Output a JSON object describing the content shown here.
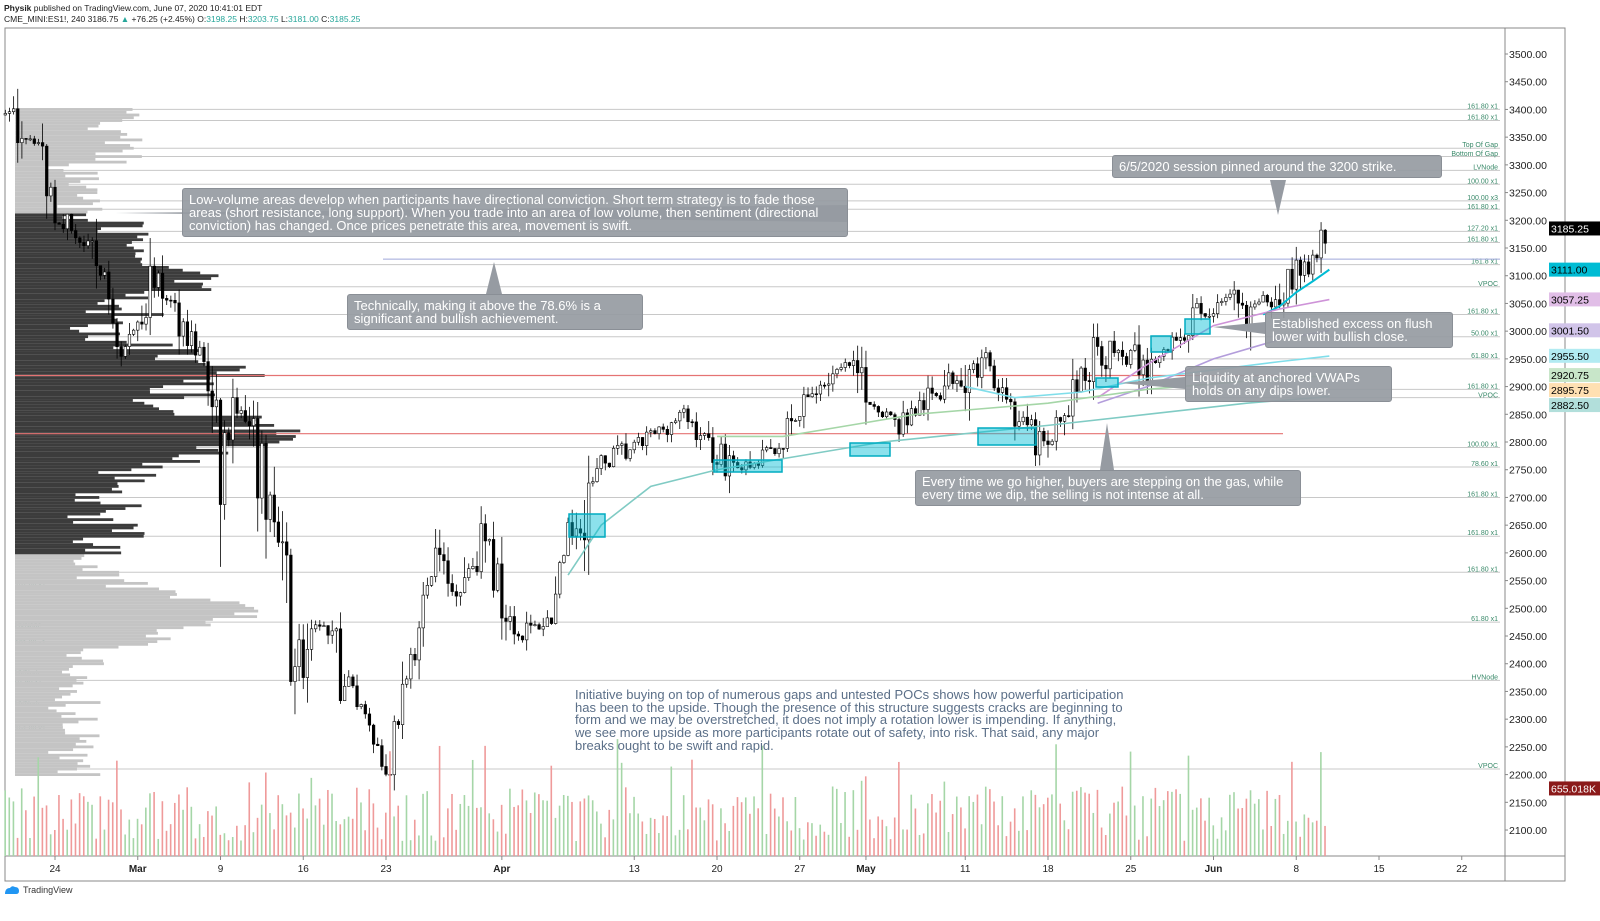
{
  "header": {
    "author": "Physik",
    "published": "published on TradingView.com, June 07, 2020 10:41:01 EDT",
    "symbol": "CME_MINI:ES1!, 240",
    "last": "3186.75",
    "change": "+76.25 (+2.45%)",
    "o_label": "O:",
    "o": "3198.25",
    "h_label": "H:",
    "h": "3203.75",
    "l_label": "L:",
    "l": "3181.00",
    "c_label": "C:",
    "c": "3185.25"
  },
  "footer": {
    "brand": "TradingView"
  },
  "colors": {
    "up": "#26a69a",
    "down": "#000000",
    "accent": "#00bcd4",
    "red_level": "#e57373",
    "note_bg": "#969ba2"
  },
  "annotations": [
    {
      "text": "Low-volume areas develop when participants have directional conviction. Short term strategy is to fade those areas (short resistance, long support). When you trade into an area of low volume, then sentiment (directional conviction) has changed. Once prices penetrate this area, movement is swift."
    },
    {
      "text": "Technically, making it above the 78.6% is a significant and bullish achievement."
    },
    {
      "text": "6/5/2020 session pinned around the 3200 strike."
    },
    {
      "text": "Established excess on flush lower with bullish close."
    },
    {
      "text": "Liquidity at anchored VWAPs holds on any dips lower."
    },
    {
      "text": "Every time we go higher, buyers are stepping on the gas, while every time we dip, the selling is not intense at all."
    },
    {
      "text": "Initiative buying on top of numerous gaps and untested POCs shows how powerful participation has been to the upside. Though the presence of this structure suggests cracks are beginning to form and we may be overstretched, it does not imply a rotation lower is impending. If anything, we see more upside as more participants rotate out of safety, into risk. That said, any major breaks ought to be swift and rapid."
    }
  ],
  "chart_data": {
    "type": "candlestick",
    "title": "CME_MINI:ES1!, 240",
    "ylim": [
      2050,
      3550
    ],
    "y_ticks": [
      "3500.00",
      "3450.00",
      "3400.00",
      "3350.00",
      "3300.00",
      "3250.00",
      "3200.00",
      "3150.00",
      "3100.00",
      "3050.00",
      "3000.00",
      "2950.00",
      "2900.00",
      "2850.00",
      "2800.00",
      "2750.00",
      "2700.00",
      "2650.00",
      "2600.00",
      "2550.00",
      "2500.00",
      "2450.00",
      "2400.00",
      "2350.00",
      "2300.00",
      "2250.00",
      "2200.00",
      "2150.00",
      "2100.00"
    ],
    "x_ticks": [
      {
        "label": "24",
        "day": 0
      },
      {
        "label": "Mar",
        "day": 5
      },
      {
        "label": "9",
        "day": 10
      },
      {
        "label": "16",
        "day": 15
      },
      {
        "label": "23",
        "day": 20
      },
      {
        "label": "Apr",
        "day": 27
      },
      {
        "label": "13",
        "day": 35
      },
      {
        "label": "20",
        "day": 40
      },
      {
        "label": "27",
        "day": 45
      },
      {
        "label": "May",
        "day": 49
      },
      {
        "label": "11",
        "day": 55
      },
      {
        "label": "18",
        "day": 60
      },
      {
        "label": "25",
        "day": 65
      },
      {
        "label": "Jun",
        "day": 70
      },
      {
        "label": "8",
        "day": 75
      },
      {
        "label": "15",
        "day": 80
      },
      {
        "label": "22",
        "day": 85
      }
    ],
    "price_path": [
      [
        -3,
        3390
      ],
      [
        -1,
        3340
      ],
      [
        0,
        3230
      ],
      [
        3,
        3100
      ],
      [
        4,
        2950
      ],
      [
        6,
        3100
      ],
      [
        8,
        3000
      ],
      [
        9,
        2950
      ],
      [
        10,
        2750
      ],
      [
        11,
        2870
      ],
      [
        13,
        2700
      ],
      [
        14,
        2500
      ],
      [
        15,
        2400
      ],
      [
        16,
        2480
      ],
      [
        18,
        2350
      ],
      [
        19,
        2300
      ],
      [
        20,
        2200
      ],
      [
        21,
        2330
      ],
      [
        23,
        2600
      ],
      [
        24,
        2530
      ],
      [
        26,
        2620
      ],
      [
        28,
        2450
      ],
      [
        30,
        2480
      ],
      [
        31,
        2620
      ],
      [
        33,
        2760
      ],
      [
        35,
        2790
      ],
      [
        38,
        2850
      ],
      [
        40,
        2780
      ],
      [
        42,
        2750
      ],
      [
        44,
        2800
      ],
      [
        46,
        2900
      ],
      [
        48,
        2940
      ],
      [
        49,
        2880
      ],
      [
        51,
        2830
      ],
      [
        53,
        2880
      ],
      [
        55,
        2940
      ],
      [
        57,
        2920
      ],
      [
        58,
        2850
      ],
      [
        60,
        2780
      ],
      [
        61,
        2860
      ],
      [
        63,
        2960
      ],
      [
        65,
        2950
      ],
      [
        66,
        2930
      ],
      [
        67,
        2960
      ],
      [
        69,
        3030
      ],
      [
        71,
        3050
      ],
      [
        72,
        3030
      ],
      [
        74,
        3080
      ],
      [
        76,
        3120
      ],
      [
        77,
        3185
      ]
    ],
    "price_badges": [
      {
        "value": "3185.25",
        "price": 3185.25,
        "bg": "#000000",
        "fg": "#ffffff"
      },
      {
        "value": "3111.00",
        "price": 3111,
        "bg": "#00bcd4",
        "fg": "#000000"
      },
      {
        "value": "3057.25",
        "price": 3057.25,
        "bg": "#e1bee7",
        "fg": "#000000"
      },
      {
        "value": "3001.50",
        "price": 3001.5,
        "bg": "#d1c4e9",
        "fg": "#000000"
      },
      {
        "value": "2955.50",
        "price": 2955.5,
        "bg": "#b2ebf2",
        "fg": "#000000"
      },
      {
        "value": "2920.75",
        "price": 2920.75,
        "bg": "#c8e6c9",
        "fg": "#000000"
      },
      {
        "value": "2895.75",
        "price": 2895.75,
        "bg": "#ffe0b2",
        "fg": "#000000"
      },
      {
        "value": "2882.50",
        "price": 2882.5,
        "bg": "#b2dfdb",
        "fg": "#000000"
      },
      {
        "value": "655.018K",
        "price": 2175,
        "bg": "#8b1a1a",
        "fg": "#ffffff"
      }
    ],
    "vwaps": [
      {
        "color": "#00bcd4",
        "anchor_day": 73,
        "points": [
          [
            73,
            3030
          ],
          [
            74,
            3045
          ],
          [
            75,
            3070
          ],
          [
            76,
            3090
          ],
          [
            77,
            3111
          ]
        ]
      },
      {
        "color": "#ce93d8",
        "anchor_day": 63,
        "points": [
          [
            63,
            2880
          ],
          [
            66,
            2940
          ],
          [
            70,
            3010
          ],
          [
            74,
            3040
          ],
          [
            77,
            3057
          ]
        ]
      },
      {
        "color": "#b39ddb",
        "anchor_day": 63,
        "points": [
          [
            63,
            2870
          ],
          [
            66,
            2900
          ],
          [
            70,
            2950
          ],
          [
            74,
            2985
          ],
          [
            77,
            3001
          ]
        ]
      },
      {
        "color": "#80deea",
        "anchor_day": 58,
        "points": [
          [
            55,
            2900
          ],
          [
            58,
            2880
          ],
          [
            62,
            2890
          ],
          [
            66,
            2915
          ],
          [
            70,
            2930
          ],
          [
            74,
            2945
          ],
          [
            77,
            2955
          ]
        ]
      },
      {
        "color": "#a5d6a7",
        "anchor_day": 40,
        "points": [
          [
            40,
            2810
          ],
          [
            44,
            2810
          ],
          [
            48,
            2830
          ],
          [
            52,
            2850
          ],
          [
            56,
            2860
          ],
          [
            60,
            2870
          ],
          [
            66,
            2895
          ],
          [
            72,
            2910
          ],
          [
            77,
            2920
          ]
        ]
      },
      {
        "color": "#80cbc4",
        "anchor_day": 31,
        "points": [
          [
            31,
            2560
          ],
          [
            33,
            2650
          ],
          [
            36,
            2720
          ],
          [
            40,
            2750
          ],
          [
            45,
            2775
          ],
          [
            50,
            2800
          ],
          [
            55,
            2815
          ],
          [
            60,
            2830
          ],
          [
            66,
            2850
          ],
          [
            72,
            2870
          ],
          [
            77,
            2882
          ]
        ]
      }
    ],
    "levels": [
      {
        "price": 3400,
        "label": "161.80 x1"
      },
      {
        "price": 3380,
        "label": "161.80 x1"
      },
      {
        "price": 3330,
        "label": "Top Of Gap"
      },
      {
        "price": 3315,
        "label": "Bottom Of Gap"
      },
      {
        "price": 3290,
        "label": "LVNode"
      },
      {
        "price": 3265,
        "label": "100.00 x1"
      },
      {
        "price": 3235,
        "label": "100.00 x3"
      },
      {
        "price": 3220,
        "label": "161.80 x1"
      },
      {
        "price": 3180,
        "label": "127.20 x1"
      },
      {
        "price": 3160,
        "label": "161.80 x1"
      },
      {
        "price": 3120,
        "label": "161.8 x1"
      },
      {
        "price": 3080,
        "label": "VPOC"
      },
      {
        "price": 3030,
        "label": "161.80 x1"
      },
      {
        "price": 2990,
        "label": "50.00 x1"
      },
      {
        "price": 2950,
        "label": "61.80 x1"
      },
      {
        "price": 2895,
        "label": "161.80 x1"
      },
      {
        "price": 2880,
        "label": "VPOC"
      },
      {
        "price": 2790,
        "label": "100.00 x1"
      },
      {
        "price": 2755,
        "label": "78.60 x1"
      },
      {
        "price": 2700,
        "label": "161.80 x1"
      },
      {
        "price": 2630,
        "label": "161.80 x1"
      },
      {
        "price": 2565,
        "label": "161.80 x1"
      },
      {
        "price": 2475,
        "label": "61.80 x1"
      },
      {
        "price": 2370,
        "label": "HVNode"
      },
      {
        "price": 2210,
        "label": "VPOC"
      }
    ],
    "red_levels": [
      2920,
      2815
    ],
    "purple_level": 3130,
    "profile_poc": 2815,
    "left_labels": [
      {
        "price": 2540,
        "label": "161.80 x1"
      },
      {
        "price": 2465,
        "label": "HVNode"
      },
      {
        "price": 2435,
        "label": "161.80 x1"
      },
      {
        "price": 2380,
        "label": "HVNode"
      },
      {
        "price": 2370,
        "label": "61.80 x1"
      },
      {
        "price": 2325,
        "label": "HVNode"
      },
      {
        "price": 2280,
        "label": "161.80 x1"
      }
    ],
    "volume_last": "655.018K"
  }
}
